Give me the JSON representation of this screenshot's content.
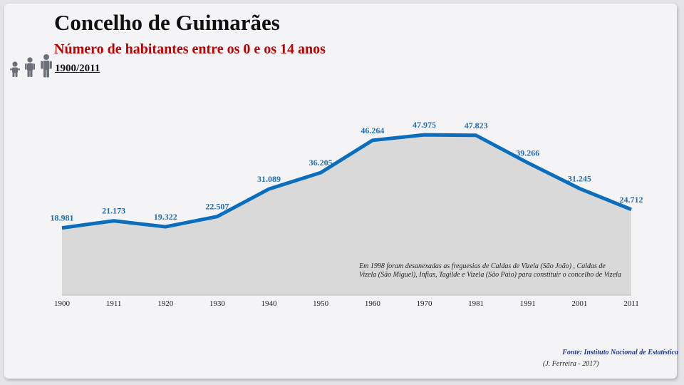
{
  "header": {
    "title": "Concelho de Guimarães",
    "subtitle": "Número de habitantes entre os 0 e os 14 anos",
    "period": "1900/2011"
  },
  "chart_data": {
    "type": "area",
    "title": "Concelho de Guimarães",
    "subtitle": "Número de habitantes entre os 0 e os 14 anos",
    "x": [
      "1900",
      "1911",
      "1920",
      "1930",
      "1940",
      "1950",
      "1960",
      "1970",
      "1981",
      "1991",
      "2001",
      "2011"
    ],
    "values": [
      18981,
      21173,
      19322,
      22507,
      31089,
      36205,
      46264,
      47975,
      47823,
      39266,
      31245,
      24712
    ],
    "labels": [
      "18.981",
      "21.173",
      "19.322",
      "22.507",
      "31.089",
      "36.205",
      "46.264",
      "47.975",
      "47.823",
      "39.266",
      "31.245",
      "24.712"
    ],
    "ylim": [
      -2000,
      60000
    ],
    "grid": false,
    "legend": "none",
    "line_color": "#0a6ebd",
    "fill_color": "#d9d9d9",
    "label_color": "#1f6eb5"
  },
  "footer": {
    "note": "Em 1998 foram desanexadas as freguesias de Caldas de Vizela (São João) , Caldas de Vizela (São Miguel), Infias, Tagilde e Vizela (São Paio) para constituir o concelho de Vizela",
    "source": "Fonte: Instituto Nacional de Estatística",
    "author": "(J. Ferreira - 2017)"
  },
  "icons": [
    "baby-icon",
    "child-icon",
    "adult-icon"
  ]
}
